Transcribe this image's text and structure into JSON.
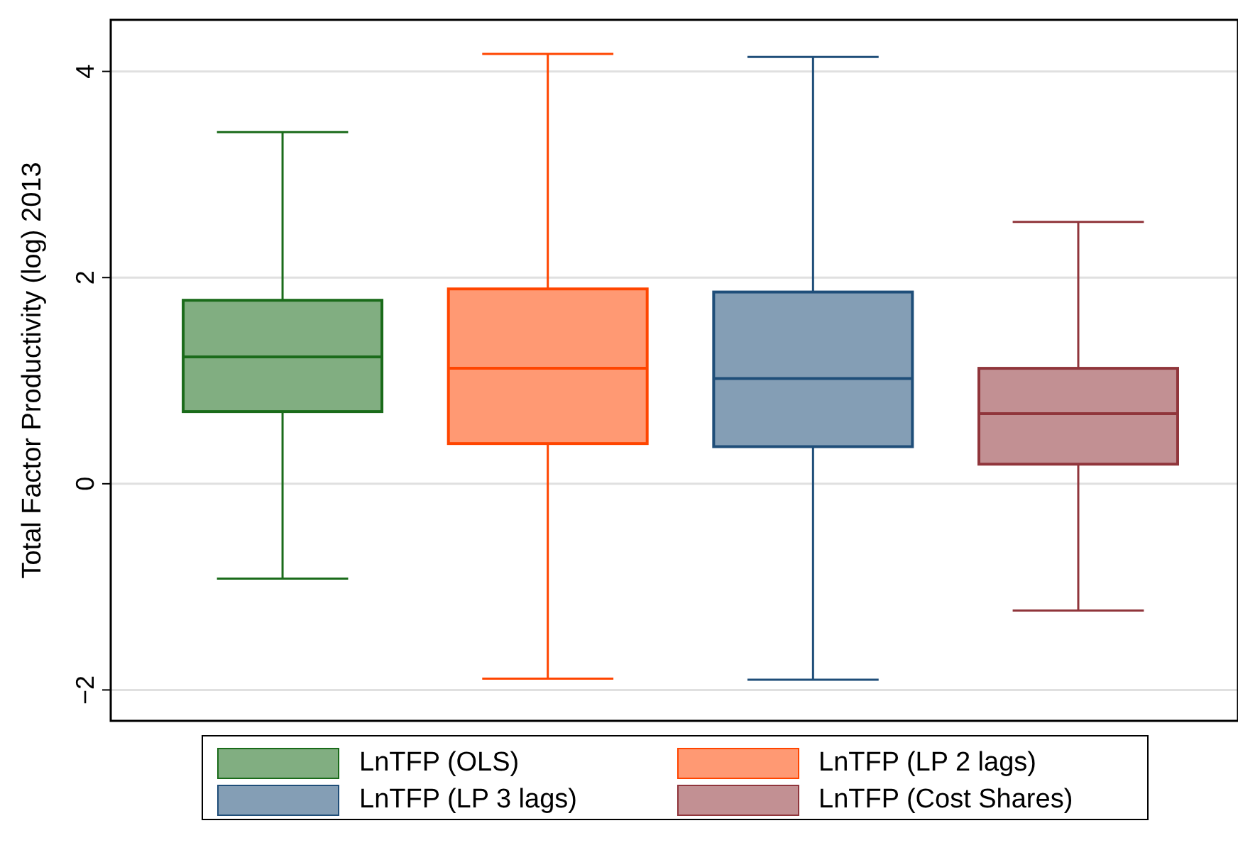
{
  "chart_data": {
    "type": "box",
    "ylabel": "Total Factor Productivity (log) 2013",
    "categories": [
      null,
      null,
      null,
      null
    ],
    "series": [
      {
        "name": "LnTFP (OLS)",
        "color": "#1a6b1a",
        "boxes": [
          {
            "low": -0.92,
            "q1": 0.7,
            "median": 1.23,
            "q3": 1.78,
            "high": 3.41
          },
          null,
          null,
          null
        ]
      },
      {
        "name": "LnTFP (LP 2 lags)",
        "color": "#ff4500",
        "boxes": [
          null,
          {
            "low": -1.89,
            "q1": 0.39,
            "median": 1.12,
            "q3": 1.89,
            "high": 4.17
          },
          null,
          null
        ]
      },
      {
        "name": "LnTFP (LP 3 lags)",
        "color": "#1f4e79",
        "boxes": [
          null,
          null,
          {
            "low": -1.9,
            "q1": 0.36,
            "median": 1.02,
            "q3": 1.86,
            "high": 4.14
          },
          null
        ]
      },
      {
        "name": "LnTFP (Cost Shares)",
        "color": "#90353b",
        "boxes": [
          null,
          null,
          null,
          {
            "low": -1.23,
            "q1": 0.19,
            "median": 0.68,
            "q3": 1.12,
            "high": 2.54
          }
        ]
      }
    ],
    "ylim": [
      -2.3,
      4.5
    ],
    "yticks": [
      {
        "value": -2,
        "label": "−2"
      },
      0,
      2,
      4
    ],
    "grid": "y",
    "legend": "bottom"
  }
}
